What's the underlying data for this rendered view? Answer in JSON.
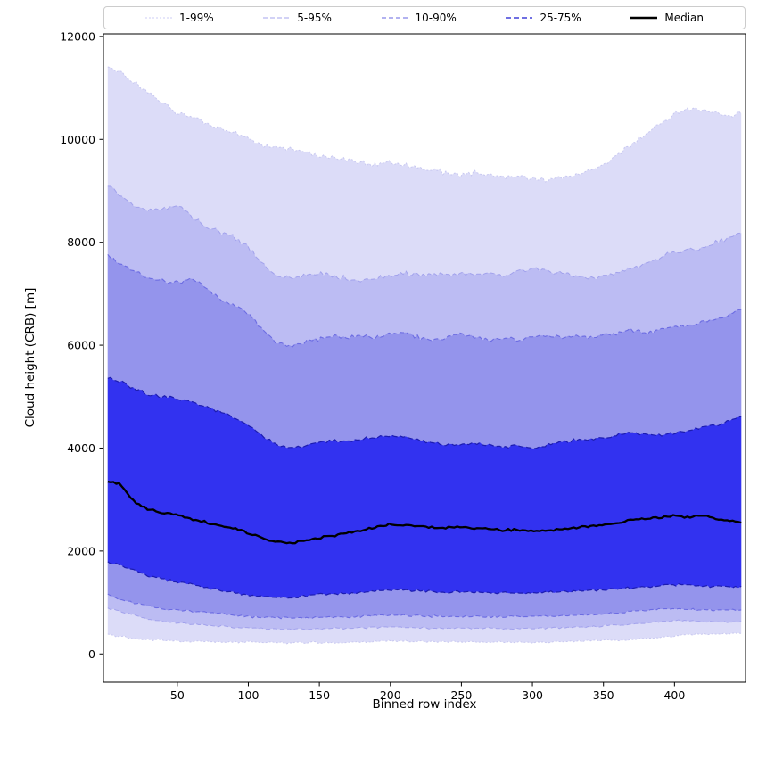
{
  "chart_data": {
    "type": "area",
    "title": "",
    "xlabel": "Binned row index",
    "ylabel": "Cloud height (CRB) [m]",
    "xlim": [
      -2,
      450
    ],
    "ylim": [
      -550,
      12050
    ],
    "x_ticks": [
      50,
      100,
      150,
      200,
      250,
      300,
      350,
      400
    ],
    "y_ticks": [
      0,
      2000,
      4000,
      6000,
      8000,
      10000,
      12000
    ],
    "grid": false,
    "legend": {
      "position": "top",
      "items": [
        {
          "label": "1-99%",
          "color": "#d8d8f6",
          "dash": "2 2",
          "width": 1.2
        },
        {
          "label": "5-95%",
          "color": "#b6b6f0",
          "dash": "5 3",
          "width": 1.2
        },
        {
          "label": "10-90%",
          "color": "#8484e8",
          "dash": "5 3",
          "width": 1.3
        },
        {
          "label": "25-75%",
          "color": "#4040d8",
          "dash": "6 3",
          "width": 1.4
        },
        {
          "label": "Median",
          "color": "#000000",
          "dash": "",
          "width": 2.6
        }
      ]
    },
    "x": [
      1,
      10,
      20,
      30,
      40,
      50,
      60,
      70,
      80,
      90,
      100,
      110,
      120,
      130,
      140,
      150,
      160,
      170,
      180,
      190,
      200,
      210,
      220,
      230,
      240,
      250,
      260,
      270,
      280,
      290,
      300,
      310,
      320,
      330,
      340,
      350,
      360,
      370,
      380,
      390,
      400,
      410,
      420,
      430,
      440,
      448
    ],
    "percentiles": {
      "p1": [
        380,
        340,
        300,
        280,
        260,
        250,
        245,
        240,
        235,
        230,
        228,
        225,
        222,
        220,
        218,
        220,
        225,
        222,
        230,
        240,
        250,
        245,
        240,
        238,
        235,
        240,
        235,
        230,
        232,
        228,
        230,
        235,
        240,
        245,
        250,
        260,
        270,
        280,
        300,
        320,
        350,
        370,
        380,
        390,
        400,
        400
      ],
      "p5": [
        900,
        820,
        750,
        680,
        630,
        600,
        580,
        560,
        540,
        520,
        505,
        495,
        488,
        482,
        480,
        485,
        500,
        495,
        505,
        515,
        525,
        515,
        505,
        500,
        498,
        502,
        498,
        495,
        497,
        493,
        495,
        500,
        510,
        515,
        525,
        545,
        560,
        580,
        600,
        625,
        650,
        640,
        630,
        625,
        620,
        620
      ],
      "p10": [
        1150,
        1060,
        990,
        930,
        880,
        850,
        830,
        810,
        780,
        750,
        722,
        710,
        702,
        698,
        696,
        700,
        720,
        715,
        730,
        745,
        760,
        748,
        738,
        732,
        728,
        732,
        728,
        722,
        725,
        720,
        722,
        730,
        740,
        748,
        758,
        778,
        800,
        820,
        845,
        865,
        880,
        868,
        858,
        852,
        848,
        850
      ],
      "p25": [
        1800,
        1720,
        1620,
        1520,
        1450,
        1400,
        1360,
        1300,
        1240,
        1190,
        1150,
        1120,
        1105,
        1100,
        1110,
        1150,
        1180,
        1170,
        1200,
        1225,
        1250,
        1235,
        1220,
        1210,
        1200,
        1210,
        1200,
        1190,
        1195,
        1185,
        1180,
        1195,
        1210,
        1220,
        1235,
        1250,
        1270,
        1290,
        1310,
        1330,
        1350,
        1335,
        1320,
        1310,
        1300,
        1300
      ],
      "p75": [
        5350,
        5300,
        5150,
        5050,
        5000,
        4950,
        4900,
        4800,
        4700,
        4600,
        4450,
        4250,
        4060,
        4000,
        4050,
        4100,
        4150,
        4120,
        4180,
        4200,
        4250,
        4220,
        4150,
        4100,
        4060,
        4080,
        4100,
        4050,
        4020,
        4050,
        4000,
        4050,
        4100,
        4150,
        4180,
        4200,
        4250,
        4300,
        4280,
        4250,
        4300,
        4350,
        4400,
        4450,
        4550,
        4620
      ],
      "p90": [
        7750,
        7600,
        7420,
        7300,
        7250,
        7200,
        7300,
        7100,
        6900,
        6800,
        6600,
        6300,
        6050,
        6000,
        6050,
        6120,
        6200,
        6150,
        6200,
        6150,
        6220,
        6250,
        6150,
        6100,
        6150,
        6200,
        6150,
        6100,
        6150,
        6100,
        6150,
        6200,
        6150,
        6200,
        6150,
        6200,
        6250,
        6300,
        6250,
        6300,
        6350,
        6400,
        6450,
        6500,
        6600,
        6700
      ],
      "p95": [
        9100,
        8900,
        8700,
        8600,
        8650,
        8750,
        8500,
        8300,
        8200,
        8100,
        7900,
        7600,
        7350,
        7300,
        7350,
        7400,
        7350,
        7300,
        7250,
        7300,
        7350,
        7400,
        7350,
        7400,
        7350,
        7400,
        7350,
        7400,
        7350,
        7450,
        7500,
        7450,
        7400,
        7350,
        7300,
        7350,
        7400,
        7500,
        7600,
        7700,
        7800,
        7850,
        7900,
        8000,
        8100,
        8200
      ],
      "p99": [
        11400,
        11300,
        11100,
        10900,
        10700,
        10500,
        10450,
        10300,
        10200,
        10150,
        10000,
        9900,
        9850,
        9800,
        9750,
        9700,
        9650,
        9600,
        9550,
        9500,
        9550,
        9500,
        9450,
        9400,
        9350,
        9300,
        9350,
        9300,
        9250,
        9300,
        9250,
        9200,
        9250,
        9300,
        9400,
        9500,
        9700,
        9900,
        10100,
        10300,
        10500,
        10600,
        10550,
        10500,
        10450,
        10550
      ]
    },
    "bands": [
      {
        "label": "1-99%",
        "lower": "p1",
        "upper": "p99",
        "fill": "#dcdcf8",
        "edge": "#c8c8f0",
        "dash": "2 2",
        "edge_width": 1.0
      },
      {
        "label": "5-95%",
        "lower": "p5",
        "upper": "p95",
        "fill": "#bcbcf3",
        "edge": "#a2a2ec",
        "dash": "5 3",
        "edge_width": 1.0
      },
      {
        "label": "10-90%",
        "lower": "p10",
        "upper": "p90",
        "fill": "#9494ec",
        "edge": "#6c6ce2",
        "dash": "5 3",
        "edge_width": 1.1
      },
      {
        "label": "25-75%",
        "lower": "p25",
        "upper": "p75",
        "fill": "#3232f0",
        "edge": "#1c1cb0",
        "dash": "6 3",
        "edge_width": 1.2
      }
    ],
    "median": {
      "label": "Median",
      "color": "#000000",
      "width": 2.3,
      "values": [
        3350,
        3300,
        2950,
        2800,
        2750,
        2700,
        2620,
        2560,
        2500,
        2440,
        2350,
        2250,
        2180,
        2150,
        2200,
        2250,
        2300,
        2350,
        2400,
        2460,
        2520,
        2500,
        2480,
        2465,
        2450,
        2460,
        2440,
        2420,
        2400,
        2420,
        2380,
        2400,
        2420,
        2450,
        2480,
        2500,
        2550,
        2600,
        2620,
        2650,
        2680,
        2650,
        2700,
        2620,
        2580,
        2560
      ]
    }
  }
}
